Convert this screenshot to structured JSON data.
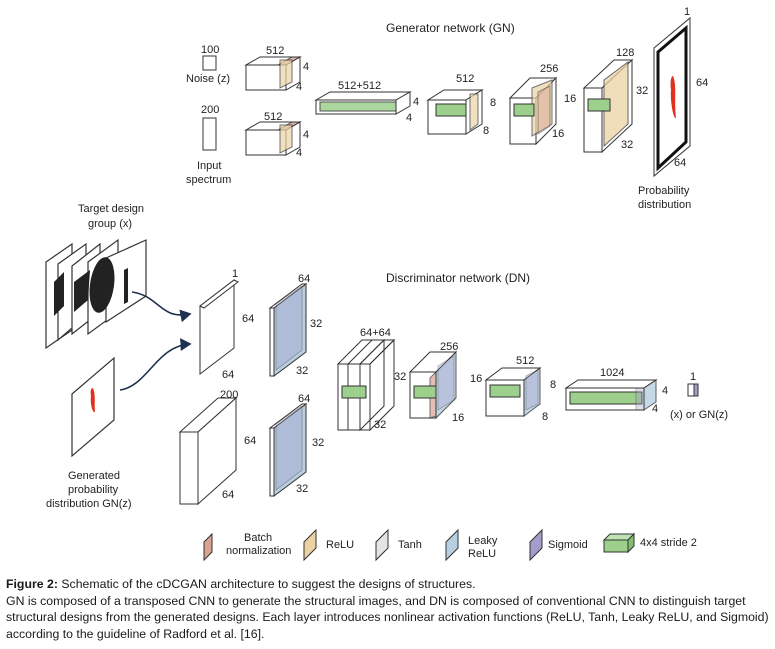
{
  "gn": {
    "title": "Generator network (GN)",
    "noise": {
      "value": "100",
      "label": "Noise (z)"
    },
    "spectrum": {
      "value": "200",
      "label_1": "Input",
      "label_2": "spectrum"
    },
    "noise_block": {
      "w": "512",
      "h": "4",
      "d": "4"
    },
    "spectrum_block": {
      "w": "512",
      "h": "4",
      "d": "4"
    },
    "concat_block": {
      "w": "512+512",
      "h": "4",
      "d": "4"
    },
    "conv1": {
      "w": "512",
      "h": "8",
      "d": "8"
    },
    "conv2": {
      "w": "256",
      "h": "16",
      "d": "16"
    },
    "conv3": {
      "w": "128",
      "h": "32",
      "d": "32"
    },
    "output": {
      "w": "1",
      "h": "64",
      "d": "64"
    },
    "output_label_1": "Probability",
    "output_label_2": "distribution"
  },
  "dn": {
    "title": "Discriminator network (DN)",
    "target_label_1": "Target design",
    "target_label_2": "group (x)",
    "generated_label_1": "Generated",
    "generated_label_2": "probability",
    "generated_label_3": "distribution GN(z)",
    "in_top": {
      "w": "1",
      "h": "64",
      "d": "64"
    },
    "in_bottom": {
      "w": "200",
      "h": "64",
      "d": "64"
    },
    "feat_top": {
      "w": "64",
      "h": "32",
      "d": "32"
    },
    "feat_bottom": {
      "w": "64",
      "h": "32",
      "d": "32"
    },
    "concat": {
      "w": "64+64",
      "h": "32",
      "d": "32"
    },
    "conv1": {
      "w": "256",
      "h": "16",
      "d": "16"
    },
    "conv2": {
      "w": "512",
      "h": "8",
      "d": "8"
    },
    "conv3": {
      "w": "1024",
      "h": "4",
      "d": "4"
    },
    "out": {
      "w": "1",
      "label": "(x) or GN(z)"
    }
  },
  "legend": {
    "batch_1": "Batch",
    "batch_2": "normalization",
    "relu": "ReLU",
    "tanh": "Tanh",
    "leaky_1": "Leaky",
    "leaky_2": "ReLU",
    "sigmoid": "Sigmoid",
    "conv": "4x4 stride 2"
  },
  "colors": {
    "batch": "#d9a394",
    "relu": "#ecd3a4",
    "tanh": "#e4e4e4",
    "leaky": "#b7cfe0",
    "sigmoid": "#a49ccc",
    "conv": "#9dd08d",
    "red": "#e03020"
  },
  "caption": {
    "head": "Figure 2:",
    "line1": "Schematic of the cDCGAN architecture to suggest the designs of structures.",
    "body": "GN is composed of a transposed CNN to generate the structural images, and DN is composed of conventional CNN to distinguish target structural designs from the generated designs. Each layer introduces nonlinear activation functions (ReLU, Tanh, Leaky ReLU, and Sigmoid) according to the guideline of Radford et al. [16]."
  }
}
